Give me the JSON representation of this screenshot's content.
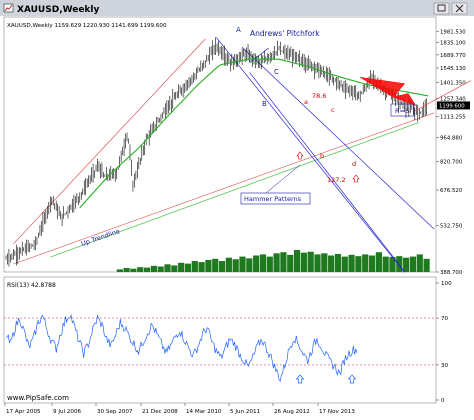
{
  "window": {
    "title": "XAUUSD,Weekly",
    "maximize_icon": "maximize-icon",
    "close_icon": "close-icon",
    "titlebar_color": "#cfd3dc"
  },
  "chart_data": [
    {
      "type": "candlestick",
      "symbol": "XAUUSD",
      "timeframe": "Weekly",
      "header_text": "XAUUSD,Weekly  1159.629 1220.930 1141.699 1199.600",
      "ohlc": {
        "open": 1159.629,
        "high": 1220.93,
        "low": 1141.699,
        "close": 1199.6
      },
      "last_price_label": "1199.600",
      "y_scale": "log",
      "ylim": [
        388.7,
        1985
      ],
      "y_ticks": [
        "1981.530",
        "1835.100",
        "1689.770",
        "1545.130",
        "1401.350",
        "1257.340",
        "1113.255",
        "964.880",
        "820.700",
        "676.520",
        "532.750",
        "388.700"
      ],
      "y_tick_values": [
        1981.53,
        1835.1,
        1689.77,
        1545.13,
        1401.35,
        1257.34,
        1113.255,
        964.88,
        820.7,
        676.52,
        532.75,
        388.7
      ],
      "x_ticks": [
        "17 Apr 2005",
        "9 Jul 2006",
        "30 Sep 2007",
        "21 Dec 2008",
        "14 Mar 2010",
        "5 Jun 2011",
        "26 Aug 2012",
        "17 Nov 2013"
      ],
      "price_path": [
        [
          0,
          425
        ],
        [
          40,
          470
        ],
        [
          62,
          640
        ],
        [
          75,
          560
        ],
        [
          100,
          650
        ],
        [
          125,
          800
        ],
        [
          133,
          740
        ],
        [
          150,
          760
        ],
        [
          165,
          1000
        ],
        [
          172,
          700
        ],
        [
          190,
          950
        ],
        [
          220,
          1200
        ],
        [
          265,
          1550
        ],
        [
          285,
          1800
        ],
        [
          305,
          1600
        ],
        [
          325,
          1700
        ],
        [
          345,
          1600
        ],
        [
          370,
          1750
        ],
        [
          395,
          1650
        ],
        [
          420,
          1550
        ],
        [
          440,
          1450
        ],
        [
          460,
          1350
        ],
        [
          480,
          1280
        ],
        [
          495,
          1450
        ],
        [
          510,
          1350
        ],
        [
          525,
          1270
        ],
        [
          545,
          1180
        ],
        [
          560,
          1140
        ],
        [
          572,
          1200
        ]
      ],
      "ma_path": [
        [
          100,
          600
        ],
        [
          140,
          750
        ],
        [
          180,
          900
        ],
        [
          220,
          1120
        ],
        [
          260,
          1380
        ],
        [
          290,
          1580
        ],
        [
          330,
          1640
        ],
        [
          370,
          1640
        ],
        [
          410,
          1560
        ],
        [
          450,
          1460
        ],
        [
          490,
          1380
        ],
        [
          530,
          1330
        ],
        [
          572,
          1280
        ]
      ],
      "volume_bars": [
        0.12,
        0.18,
        0.15,
        0.22,
        0.2,
        0.28,
        0.25,
        0.35,
        0.3,
        0.42,
        0.38,
        0.5,
        0.45,
        0.55,
        0.6,
        0.5,
        0.65,
        0.58,
        0.7,
        0.62,
        0.75,
        0.8,
        0.7,
        0.85,
        0.9,
        0.78,
        1.0,
        0.88,
        0.92,
        0.8,
        0.85,
        0.75,
        0.82,
        0.7,
        0.78,
        0.72,
        0.8,
        0.75,
        0.9,
        0.7,
        0.68,
        0.72,
        0.65,
        0.7,
        0.8,
        0.6
      ],
      "annotations": [
        {
          "id": "title",
          "text": "Andrews' Pitchfork",
          "color": "#1a1aa0"
        },
        {
          "id": "A",
          "text": "A",
          "color": "#1a1aa0"
        },
        {
          "id": "B",
          "text": "B",
          "color": "#1a1aa0"
        },
        {
          "id": "C",
          "text": "C",
          "color": "#1a1aa0"
        },
        {
          "id": "a",
          "text": "a",
          "color": "#cc0000"
        },
        {
          "id": "b",
          "text": "b",
          "color": "#cc0000"
        },
        {
          "id": "c",
          "text": "c",
          "color": "#cc0000"
        },
        {
          "id": "d",
          "text": "d",
          "color": "#cc0000"
        },
        {
          "id": "fib786",
          "text": "78.6",
          "color": "#cc0000"
        },
        {
          "id": "fib1272",
          "text": "127.2",
          "color": "#cc0000"
        },
        {
          "id": "hammer",
          "text": "Hammer Patterns",
          "color": "#1a1aa0"
        },
        {
          "id": "rs",
          "text": "R=S",
          "color": "#1a1aa0"
        },
        {
          "id": "uptrend",
          "text": "Up Trendline",
          "color": "#1a1aa0"
        }
      ],
      "colors": {
        "candles": "#000000",
        "ma": "#22b022",
        "volume": "#1f7a1f",
        "pitchfork": "#2a2ad0",
        "channel": "#e05050",
        "trendline": "#5ac85a",
        "harmonic": "#ff0000",
        "last_price_bg": "#000000"
      }
    },
    {
      "type": "line",
      "title": "RSI(13) 42.8788",
      "ylim": [
        0,
        100
      ],
      "y_ticks": [
        "100",
        "70",
        "30",
        "0"
      ],
      "levels": [
        70,
        30
      ],
      "x_ticks": [
        "17 Apr 2005",
        "9 Jul 2006",
        "30 Sep 2007",
        "21 Dec 2008",
        "14 Mar 2010",
        "5 Jun 2011",
        "26 Aug 2012",
        "17 Nov 2013"
      ],
      "values": [
        55,
        48,
        62,
        70,
        58,
        45,
        52,
        66,
        72,
        60,
        50,
        44,
        58,
        68,
        74,
        62,
        50,
        40,
        48,
        60,
        70,
        64,
        52,
        46,
        56,
        66,
        62,
        54,
        48,
        42,
        50,
        58,
        64,
        56,
        48,
        40,
        46,
        54,
        60,
        52,
        44,
        38,
        46,
        56,
        62,
        50,
        42,
        36,
        44,
        52,
        48,
        40,
        34,
        28,
        36,
        46,
        52,
        44,
        36,
        26,
        18,
        30,
        44,
        54,
        48,
        40,
        34,
        44,
        52,
        46,
        38,
        32,
        28,
        22,
        34,
        40,
        43
      ],
      "arrow_icons": [
        "up-arrow-icon",
        "up-arrow-icon"
      ],
      "colors": {
        "line": "#1e64ff",
        "levels": "#d05050"
      }
    }
  ],
  "watermark": "www.PipSafe.com"
}
